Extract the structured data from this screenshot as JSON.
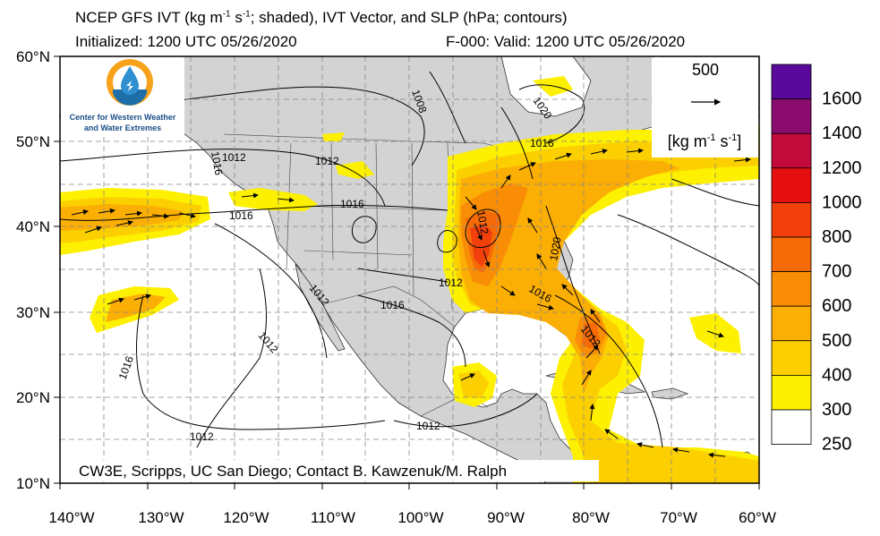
{
  "header": {
    "title_main": "NCEP GFS IVT (kg m",
    "title_sup1": "-1",
    "title_mid": " s",
    "title_sup2": "-1",
    "title_rest": "; shaded), IVT Vector, and SLP (hPa; contours)",
    "initialized": "Initialized: 1200 UTC 05/26/2020",
    "valid": "F-000: Valid: 1200 UTC 05/26/2020"
  },
  "logo": {
    "icon": "cw3e-water-drop-logo",
    "line1": "Center for Western Weather",
    "line2": "and Water Extremes"
  },
  "credit": "CW3E, Scripps, UC San Diego; Contact B. Kawzenuk/M. Ralph",
  "reference_vector": {
    "value": "500",
    "units_base": "[kg m",
    "units_sup1": "-1",
    "units_mid": " s",
    "units_sup2": "-1",
    "units_end": "]"
  },
  "map": {
    "lat_labels": [
      "60°N",
      "50°N",
      "40°N",
      "30°N",
      "20°N",
      "10°N"
    ],
    "lat_values": [
      60,
      50,
      40,
      30,
      20,
      10
    ],
    "lon_labels": [
      "140°W",
      "130°W",
      "120°W",
      "110°W",
      "100°W",
      "90°W",
      "80°W",
      "70°W",
      "60°W"
    ],
    "lon_values": [
      -140,
      -130,
      -120,
      -110,
      -100,
      -90,
      -80,
      -70,
      -60
    ],
    "extent": {
      "lon_min": -140,
      "lon_max": -60,
      "lat_min": 10,
      "lat_max": 60
    },
    "grid": "dashed",
    "contour_labels": [
      "1008",
      "1020",
      "1016",
      "1012",
      "1016",
      "1016",
      "1012",
      "1012",
      "1016",
      "1012",
      "1016",
      "1020",
      "1016",
      "1012",
      "1012",
      "1012",
      "1012",
      "1016",
      "1012"
    ]
  },
  "colorbar": {
    "labels": [
      "1600",
      "1400",
      "1200",
      "1000",
      "800",
      "700",
      "600",
      "500",
      "400",
      "300",
      "250"
    ],
    "colors": [
      "#5a0a9a",
      "#8a0c6e",
      "#c20b3b",
      "#e61010",
      "#f2400c",
      "#f76a08",
      "#f98d06",
      "#fbae03",
      "#fcd000",
      "#fdf000",
      "#ffffff"
    ]
  }
}
